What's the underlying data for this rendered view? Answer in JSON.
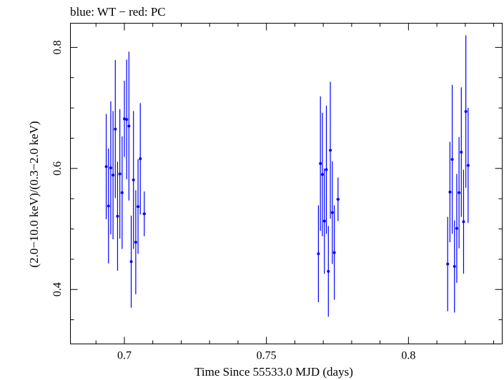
{
  "chart_data": {
    "type": "scatter",
    "title": "blue: WT − red: PC",
    "xlabel": "Time Since 55533.0 MJD (days)",
    "ylabel": "(2.0−10.0 keV)/(0.3−2.0 keV)",
    "xlim": [
      0.681,
      0.833
    ],
    "ylim": [
      0.31,
      0.84
    ],
    "x_ticks": [
      0.7,
      0.75,
      0.8
    ],
    "x_tick_labels": [
      "0.7",
      "0.75",
      "0.8"
    ],
    "y_ticks": [
      0.4,
      0.6,
      0.8
    ],
    "y_tick_labels": [
      "0.4",
      "0.6",
      "0.8"
    ],
    "grid": false,
    "series": [
      {
        "color": "#0000ff",
        "points": [
          {
            "x": 0.6936,
            "y": 0.603,
            "xerr": 0.0004,
            "yerr": 0.087
          },
          {
            "x": 0.6944,
            "y": 0.538,
            "xerr": 0.0004,
            "yerr": 0.095
          },
          {
            "x": 0.6952,
            "y": 0.601,
            "xerr": 0.0004,
            "yerr": 0.11
          },
          {
            "x": 0.696,
            "y": 0.589,
            "xerr": 0.0004,
            "yerr": 0.106
          },
          {
            "x": 0.6968,
            "y": 0.665,
            "xerr": 0.0004,
            "yerr": 0.114
          },
          {
            "x": 0.6976,
            "y": 0.521,
            "xerr": 0.0004,
            "yerr": 0.09
          },
          {
            "x": 0.6984,
            "y": 0.591,
            "xerr": 0.0004,
            "yerr": 0.107
          },
          {
            "x": 0.6992,
            "y": 0.56,
            "xerr": 0.0004,
            "yerr": 0.093
          },
          {
            "x": 0.7,
            "y": 0.682,
            "xerr": 0.0004,
            "yerr": 0.063
          },
          {
            "x": 0.7008,
            "y": 0.681,
            "xerr": 0.0004,
            "yerr": 0.099
          },
          {
            "x": 0.7016,
            "y": 0.67,
            "xerr": 0.0004,
            "yerr": 0.123
          },
          {
            "x": 0.7024,
            "y": 0.446,
            "xerr": 0.0004,
            "yerr": 0.076
          },
          {
            "x": 0.7032,
            "y": 0.581,
            "xerr": 0.0004,
            "yerr": 0.114
          },
          {
            "x": 0.704,
            "y": 0.478,
            "xerr": 0.0004,
            "yerr": 0.086
          },
          {
            "x": 0.7048,
            "y": 0.537,
            "xerr": 0.0004,
            "yerr": 0.078
          },
          {
            "x": 0.7056,
            "y": 0.616,
            "xerr": 0.0004,
            "yerr": 0.092
          },
          {
            "x": 0.707,
            "y": 0.525,
            "xerr": 0.0006,
            "yerr": 0.037
          },
          {
            "x": 0.7683,
            "y": 0.459,
            "xerr": 0.0004,
            "yerr": 0.08
          },
          {
            "x": 0.769,
            "y": 0.608,
            "xerr": 0.0004,
            "yerr": 0.111
          },
          {
            "x": 0.7697,
            "y": 0.59,
            "xerr": 0.0004,
            "yerr": 0.102
          },
          {
            "x": 0.7704,
            "y": 0.513,
            "xerr": 0.0004,
            "yerr": 0.087
          },
          {
            "x": 0.7711,
            "y": 0.598,
            "xerr": 0.0004,
            "yerr": 0.106
          },
          {
            "x": 0.7718,
            "y": 0.43,
            "xerr": 0.0004,
            "yerr": 0.075
          },
          {
            "x": 0.7725,
            "y": 0.63,
            "xerr": 0.0004,
            "yerr": 0.113
          },
          {
            "x": 0.7732,
            "y": 0.527,
            "xerr": 0.0004,
            "yerr": 0.085
          },
          {
            "x": 0.7739,
            "y": 0.461,
            "xerr": 0.0004,
            "yerr": 0.078
          },
          {
            "x": 0.7752,
            "y": 0.549,
            "xerr": 0.0006,
            "yerr": 0.036
          },
          {
            "x": 0.8138,
            "y": 0.442,
            "xerr": 0.0004,
            "yerr": 0.078
          },
          {
            "x": 0.8146,
            "y": 0.561,
            "xerr": 0.0004,
            "yerr": 0.083
          },
          {
            "x": 0.8154,
            "y": 0.615,
            "xerr": 0.0004,
            "yerr": 0.123
          },
          {
            "x": 0.8162,
            "y": 0.438,
            "xerr": 0.0004,
            "yerr": 0.076
          },
          {
            "x": 0.817,
            "y": 0.501,
            "xerr": 0.0004,
            "yerr": 0.09
          },
          {
            "x": 0.8178,
            "y": 0.56,
            "xerr": 0.0004,
            "yerr": 0.092
          },
          {
            "x": 0.8186,
            "y": 0.627,
            "xerr": 0.0004,
            "yerr": 0.107
          },
          {
            "x": 0.8194,
            "y": 0.512,
            "xerr": 0.0004,
            "yerr": 0.086
          },
          {
            "x": 0.8202,
            "y": 0.694,
            "xerr": 0.0004,
            "yerr": 0.126
          },
          {
            "x": 0.821,
            "y": 0.605,
            "xerr": 0.0004,
            "yerr": 0.095
          }
        ]
      }
    ]
  }
}
